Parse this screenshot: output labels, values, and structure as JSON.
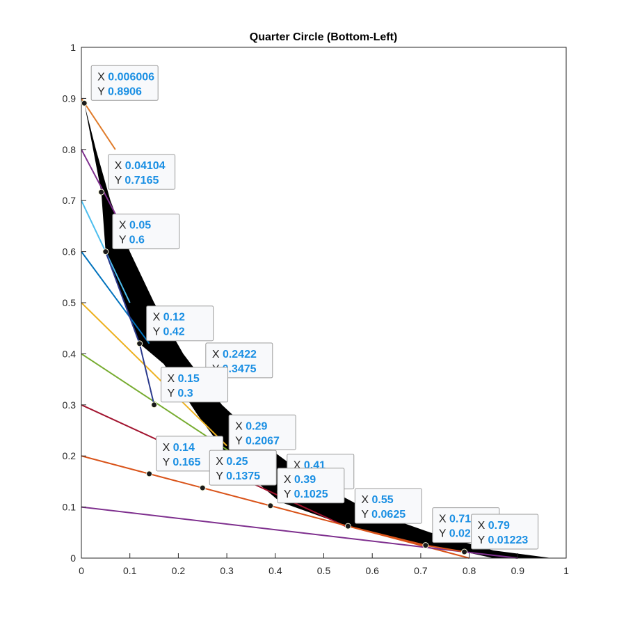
{
  "chart_data": {
    "type": "line",
    "title": "Quarter Circle (Bottom-Left)",
    "xlabel": "",
    "ylabel": "",
    "xlim": [
      0,
      1
    ],
    "ylim": [
      0,
      1
    ],
    "xticks": [
      "0",
      "0.1",
      "0.2",
      "0.3",
      "0.4",
      "0.5",
      "0.6",
      "0.7",
      "0.8",
      "0.9",
      "1"
    ],
    "yticks": [
      "0",
      "0.1",
      "0.2",
      "0.3",
      "0.4",
      "0.5",
      "0.6",
      "0.7",
      "0.8",
      "0.9",
      "1"
    ],
    "grid": false,
    "filled_region": {
      "color": "#000000",
      "upper": [
        [
          0,
          0.97
        ],
        [
          0.006,
          0.89
        ],
        [
          0.03,
          0.8
        ],
        [
          0.06,
          0.7
        ],
        [
          0.1,
          0.6
        ],
        [
          0.15,
          0.5
        ],
        [
          0.21,
          0.4
        ],
        [
          0.29,
          0.3
        ],
        [
          0.38,
          0.22
        ],
        [
          0.48,
          0.15
        ],
        [
          0.6,
          0.09
        ],
        [
          0.72,
          0.05
        ],
        [
          0.85,
          0.015
        ],
        [
          0.97,
          0
        ]
      ],
      "lower": [
        [
          0.97,
          0
        ],
        [
          0.85,
          0
        ],
        [
          0.79,
          0.0122
        ],
        [
          0.71,
          0.025
        ],
        [
          0.55,
          0.0625
        ],
        [
          0.41,
          0.11
        ],
        [
          0.31,
          0.19
        ],
        [
          0.24,
          0.28
        ],
        [
          0.17,
          0.38
        ],
        [
          0.12,
          0.42
        ],
        [
          0.05,
          0.6
        ],
        [
          0.041,
          0.7165
        ],
        [
          0.006,
          0.8906
        ],
        [
          0,
          0.97
        ]
      ]
    },
    "series": [
      {
        "color": "#e07b2a",
        "x": [
          0,
          0.07
        ],
        "y": [
          0.9,
          0.8
        ]
      },
      {
        "color": "#7e2f8e",
        "x": [
          0,
          0.1
        ],
        "y": [
          0.8,
          0.62
        ]
      },
      {
        "color": "#4dbeee",
        "x": [
          0,
          0.1
        ],
        "y": [
          0.7,
          0.5
        ]
      },
      {
        "color": "#0072bd",
        "x": [
          0,
          0.14
        ],
        "y": [
          0.6,
          0.42
        ]
      },
      {
        "color": "#edb120",
        "x": [
          0,
          0.3
        ],
        "y": [
          0.5,
          0.22
        ]
      },
      {
        "color": "#77ac30",
        "x": [
          0,
          0.4
        ],
        "y": [
          0.4,
          0.15
        ]
      },
      {
        "color": "#a2142f",
        "x": [
          0,
          0.55
        ],
        "y": [
          0.3,
          0.06
        ]
      },
      {
        "color": "#d95319",
        "x": [
          0,
          0.8
        ],
        "y": [
          0.2,
          0
        ]
      },
      {
        "color": "#7e2f8e",
        "x": [
          0,
          0.9
        ],
        "y": [
          0.1,
          0
        ]
      },
      {
        "color": "#2b3a8c",
        "x": [
          0.05,
          0.12,
          0.15
        ],
        "y": [
          0.6,
          0.42,
          0.3
        ]
      },
      {
        "color": "#d95319",
        "x": [
          0.55,
          0.71,
          0.79
        ],
        "y": [
          0.0625,
          0.025,
          0.01223
        ]
      }
    ],
    "datatips": [
      {
        "x": 0.006006,
        "y": 0.8906,
        "x_label": "0.006006",
        "y_label": "0.8906"
      },
      {
        "x": 0.04104,
        "y": 0.7165,
        "x_label": "0.04104",
        "y_label": "0.7165"
      },
      {
        "x": 0.05,
        "y": 0.6,
        "x_label": "0.05",
        "y_label": "0.6"
      },
      {
        "x": 0.12,
        "y": 0.42,
        "x_label": "0.12",
        "y_label": "0.42"
      },
      {
        "x": 0.2422,
        "y": 0.3475,
        "x_label": "0.2422",
        "y_label": "0.3475"
      },
      {
        "x": 0.15,
        "y": 0.3,
        "x_label": "0.15",
        "y_label": "0.3"
      },
      {
        "x": 0.29,
        "y": 0.2067,
        "x_label": "0.29",
        "y_label": "0.2067"
      },
      {
        "x": 0.14,
        "y": 0.165,
        "x_label": "0.14",
        "y_label": "0.165"
      },
      {
        "x": 0.41,
        "y": 0.13,
        "x_label": "0.41",
        "y_label": "0.13"
      },
      {
        "x": 0.25,
        "y": 0.1375,
        "x_label": "0.25",
        "y_label": "0.1375"
      },
      {
        "x": 0.39,
        "y": 0.1025,
        "x_label": "0.39",
        "y_label": "0.1025"
      },
      {
        "x": 0.55,
        "y": 0.0625,
        "x_label": "0.55",
        "y_label": "0.0625"
      },
      {
        "x": 0.71,
        "y": 0.025,
        "x_label": "0.71",
        "y_label": "0.025"
      },
      {
        "x": 0.79,
        "y": 0.01223,
        "x_label": "0.79",
        "y_label": "0.01223"
      }
    ]
  }
}
